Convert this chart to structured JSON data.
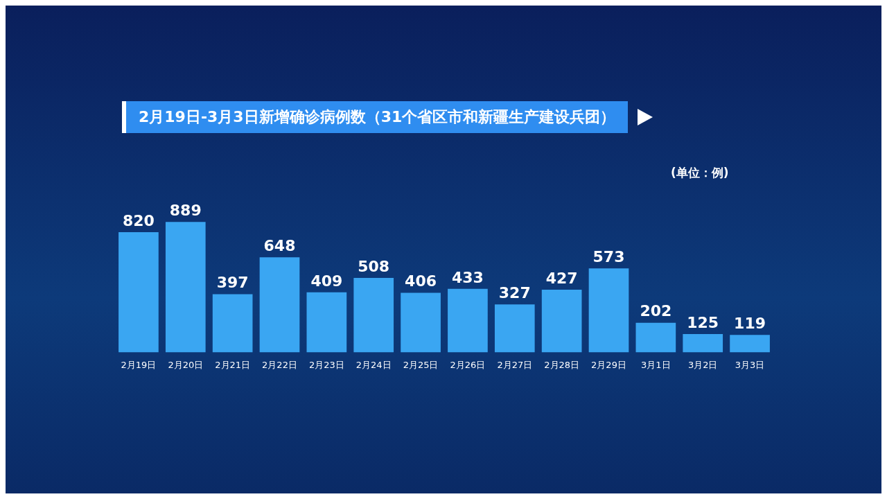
{
  "chart_data": {
    "type": "bar",
    "title": "2月19日-3月3日新增确诊病例数（31个省区市和新疆生产建设兵团）",
    "subtitle": "(单位：例)",
    "categories": [
      "2月19日",
      "2月20日",
      "2月21日",
      "2月22日",
      "2月23日",
      "2月24日",
      "2月25日",
      "2月26日",
      "2月27日",
      "2月28日",
      "2月29日",
      "3月1日",
      "3月2日",
      "3月3日"
    ],
    "values": [
      820,
      889,
      397,
      648,
      409,
      508,
      406,
      433,
      327,
      427,
      573,
      202,
      125,
      119
    ],
    "color": "#3aa6f2",
    "data_labels": true,
    "tick_labels": "x",
    "grid": false,
    "legend": false
  }
}
